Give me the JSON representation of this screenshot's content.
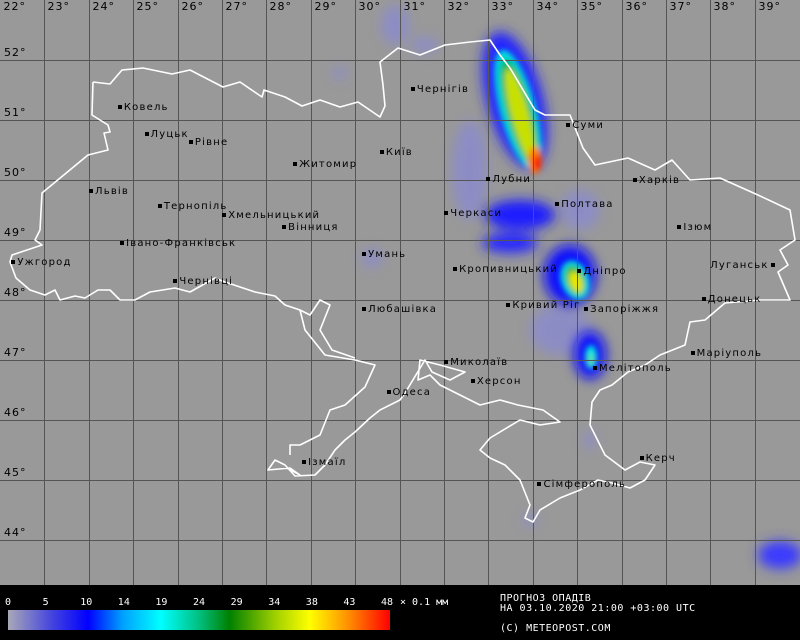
{
  "map": {
    "longitude_labels": [
      "22°",
      "23°",
      "24°",
      "25°",
      "26°",
      "27°",
      "28°",
      "29°",
      "30°",
      "31°",
      "32°",
      "33°",
      "34°",
      "35°",
      "36°",
      "37°",
      "38°",
      "39°"
    ],
    "latitude_labels": [
      "52°",
      "51°",
      "50°",
      "49°",
      "48°",
      "47°",
      "46°",
      "45°",
      "44°"
    ],
    "cities": [
      {
        "name": "Ковель",
        "lon": 24.7,
        "lat": 51.2
      },
      {
        "name": "Луцьк",
        "lon": 25.3,
        "lat": 50.75
      },
      {
        "name": "Рівне",
        "lon": 26.3,
        "lat": 50.62
      },
      {
        "name": "Житомир",
        "lon": 28.65,
        "lat": 50.25
      },
      {
        "name": "Київ",
        "lon": 30.6,
        "lat": 50.45
      },
      {
        "name": "Чернігів",
        "lon": 31.3,
        "lat": 51.5
      },
      {
        "name": "Суми",
        "lon": 34.8,
        "lat": 50.9
      },
      {
        "name": "Лубни",
        "lon": 33.0,
        "lat": 50.0
      },
      {
        "name": "Харків",
        "lon": 36.3,
        "lat": 49.98
      },
      {
        "name": "Полтава",
        "lon": 34.55,
        "lat": 49.58
      },
      {
        "name": "Черкаси",
        "lon": 32.05,
        "lat": 49.43
      },
      {
        "name": "Ізюм",
        "lon": 37.3,
        "lat": 49.2
      },
      {
        "name": "Луганськ",
        "lon": 39.4,
        "lat": 48.57,
        "label_left": true
      },
      {
        "name": "Львів",
        "lon": 24.05,
        "lat": 49.8
      },
      {
        "name": "Тернопіль",
        "lon": 25.6,
        "lat": 49.55
      },
      {
        "name": "Хмельницький",
        "lon": 27.05,
        "lat": 49.4
      },
      {
        "name": "Вінниця",
        "lon": 28.4,
        "lat": 49.2
      },
      {
        "name": "Івано-Франківськ",
        "lon": 24.75,
        "lat": 48.93
      },
      {
        "name": "Ужгород",
        "lon": 22.3,
        "lat": 48.62
      },
      {
        "name": "Умань",
        "lon": 30.2,
        "lat": 48.75
      },
      {
        "name": "Чернівці",
        "lon": 25.95,
        "lat": 48.3
      },
      {
        "name": "Кропивницький",
        "lon": 32.25,
        "lat": 48.5
      },
      {
        "name": "Дніпро",
        "lon": 35.05,
        "lat": 48.47
      },
      {
        "name": "Кривий Ріг",
        "lon": 33.45,
        "lat": 47.9
      },
      {
        "name": "Запоріжжя",
        "lon": 35.2,
        "lat": 47.83
      },
      {
        "name": "Донецьк",
        "lon": 37.85,
        "lat": 48.0
      },
      {
        "name": "Любашівка",
        "lon": 30.2,
        "lat": 47.83
      },
      {
        "name": "Маріуполь",
        "lon": 37.6,
        "lat": 47.1
      },
      {
        "name": "Миколаїв",
        "lon": 32.05,
        "lat": 46.95
      },
      {
        "name": "Мелітополь",
        "lon": 35.4,
        "lat": 46.85
      },
      {
        "name": "Херсон",
        "lon": 32.65,
        "lat": 46.63
      },
      {
        "name": "Одеса",
        "lon": 30.75,
        "lat": 46.45
      },
      {
        "name": "Ізмаїл",
        "lon": 28.85,
        "lat": 45.28
      },
      {
        "name": "Керч",
        "lon": 36.45,
        "lat": 45.35
      },
      {
        "name": "Сімферополь",
        "lon": 34.15,
        "lat": 44.92
      }
    ]
  },
  "legend": {
    "ticks": [
      "0",
      "5",
      "10",
      "14",
      "19",
      "24",
      "29",
      "34",
      "38",
      "43",
      "48"
    ],
    "unit": "× 0.1 мм",
    "colors": [
      "#a8a8b8",
      "#0000ff",
      "#00ffff",
      "#008000",
      "#ffff00",
      "#ff0000"
    ]
  },
  "info": {
    "title": "ПРОГНОЗ ОПАДІВ",
    "datetime": "НА 03.10.2020 21:00 +03:00 UTC",
    "copyright": "(C) METEOPOST.COM"
  }
}
